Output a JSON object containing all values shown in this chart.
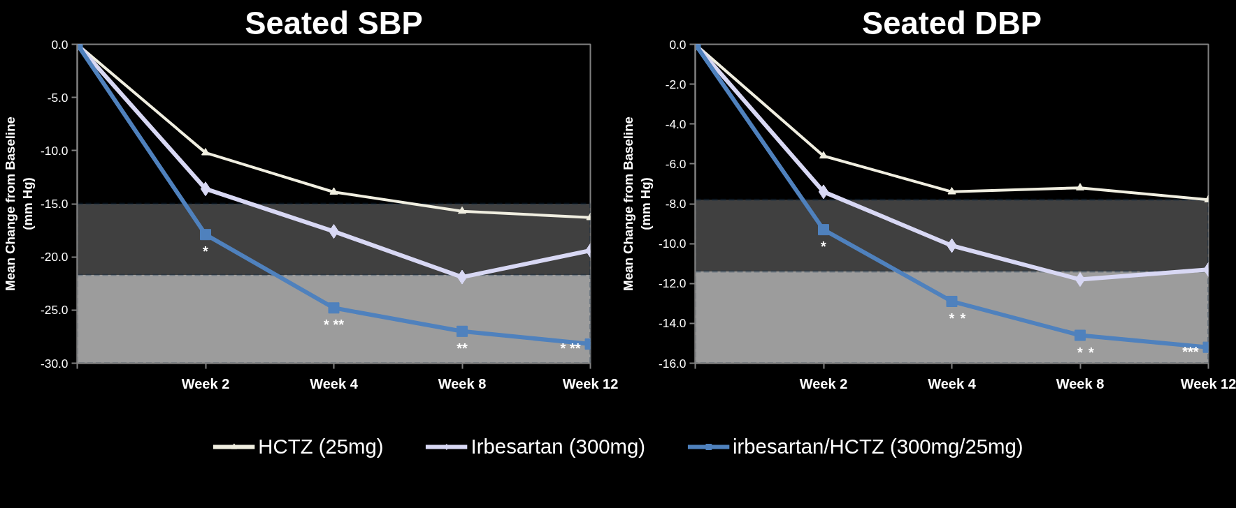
{
  "chart_data": [
    {
      "type": "line",
      "title": "Seated SBP",
      "ylabel": "Mean Change from Baseline\n(mm Hg)",
      "categories": [
        null,
        "Week 2",
        "Week 4",
        "Week 8",
        "Week 12"
      ],
      "series": [
        {
          "name": "HCTZ (25mg)",
          "color": "#f0eee0",
          "marker": "triangle",
          "values": [
            0,
            -10.2,
            -13.9,
            -15.7,
            -16.3
          ]
        },
        {
          "name": "Irbesartan (300mg)",
          "color": "#d8d8f4",
          "marker": "diamond",
          "values": [
            0,
            -13.6,
            -17.6,
            -21.9,
            -19.4
          ]
        },
        {
          "name": "irbesartan/HCTZ (300mg/25mg)",
          "color": "#4f81bd",
          "marker": "square",
          "values": [
            0,
            -17.9,
            -24.8,
            -27.0,
            -28.2
          ]
        }
      ],
      "ylim": [
        -30,
        0
      ],
      "yticks": [
        {
          "value": 0,
          "label": "0.0"
        },
        {
          "value": -5,
          "label": "-5.0"
        },
        {
          "value": -10,
          "label": "-10.0"
        },
        {
          "value": -15,
          "label": "-15.0"
        },
        {
          "value": -20,
          "label": "-20.0"
        },
        {
          "value": -25,
          "label": "-25.0"
        },
        {
          "value": -30,
          "label": "-30.0"
        }
      ],
      "bands": [
        {
          "axis": "y",
          "from": -30,
          "to": -15,
          "color": "#404040"
        },
        {
          "axis": "y",
          "from": -30,
          "to": -21.7,
          "color": "#9c9c9c"
        }
      ],
      "annotations": [
        {
          "text": "*",
          "x": "Week 2",
          "y": -17.9
        },
        {
          "text": "* **",
          "x": "Week 4",
          "y": -24.8
        },
        {
          "text": "**",
          "x": "Week 8",
          "y": -27.0
        },
        {
          "text": "* **",
          "x": "Week 12",
          "y": -28.2
        }
      ],
      "grid": false,
      "legend": "bottom"
    },
    {
      "type": "line",
      "title": "Seated DBP",
      "ylabel": "Mean Change from Baseline\n(mm Hg)",
      "categories": [
        null,
        "Week 2",
        "Week 4",
        "Week 8",
        "Week 12"
      ],
      "series": [
        {
          "color": "#f0eee0",
          "marker": "triangle",
          "values": [
            0,
            -5.6,
            -7.4,
            -7.2,
            -7.8
          ]
        },
        {
          "color": "#d8d8f4",
          "marker": "diamond",
          "values": [
            0,
            -7.4,
            -10.1,
            -11.8,
            -11.3
          ]
        },
        {
          "color": "#4f81bd",
          "marker": "square",
          "values": [
            0,
            -9.3,
            -12.9,
            -14.6,
            -15.2
          ]
        }
      ],
      "ylim": [
        -16,
        0
      ],
      "yticks": [
        {
          "value": 0,
          "label": "0.0"
        },
        {
          "value": -2,
          "label": "-2.0"
        },
        {
          "value": -4,
          "label": "-4.0"
        },
        {
          "value": -6,
          "label": "-6.0"
        },
        {
          "value": -8,
          "label": "-8.0"
        },
        {
          "value": -10,
          "label": "-10.0"
        },
        {
          "value": -12,
          "label": "-12.0"
        },
        {
          "value": -14,
          "label": "-14.0"
        },
        {
          "value": -16,
          "label": "-16.0"
        }
      ],
      "bands": [
        {
          "axis": "y",
          "from": -16,
          "to": -7.8,
          "color": "#404040"
        },
        {
          "axis": "y",
          "from": -16,
          "to": -11.4,
          "color": "#9c9c9c"
        }
      ],
      "annotations": [
        {
          "text": "*",
          "x": "Week 2",
          "y": -9.3
        },
        {
          "text": "*",
          "x": "Week 4",
          "y": -12.9
        },
        {
          "text": "*",
          "x": "Week 4",
          "y": -12.9
        },
        {
          "text": "*",
          "x": "Week 8",
          "y": -14.6
        },
        {
          "text": "*",
          "x": "Week 8",
          "y": -14.6
        },
        {
          "text": "***",
          "x": "Week 12",
          "y": -15.2
        }
      ],
      "grid": false
    }
  ]
}
